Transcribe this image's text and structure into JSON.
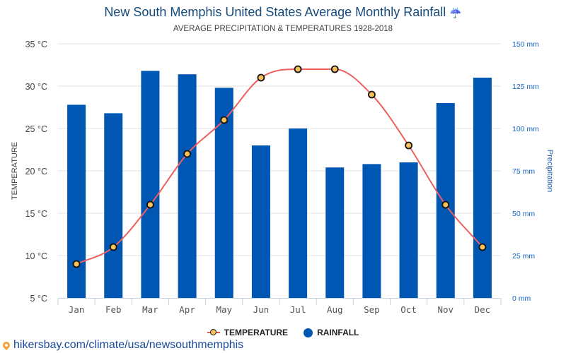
{
  "chart_data": {
    "type": "bar",
    "title": "New South Memphis United States Average Monthly Rainfall",
    "title_icon": "umbrella-rain-icon",
    "title_icon_glyph": "☔",
    "subtitle": "AVERAGE PRECIPITATION & TEMPERATURES 1928-2018",
    "categories": [
      "Jan",
      "Feb",
      "Mar",
      "Apr",
      "May",
      "Jun",
      "Jul",
      "Aug",
      "Sep",
      "Oct",
      "Nov",
      "Dec"
    ],
    "series": [
      {
        "name": "RAINFALL",
        "type": "bar",
        "axis": "right",
        "unit": "mm",
        "color": "#0057b3",
        "values": [
          114,
          109,
          134,
          132,
          124,
          90,
          100,
          77,
          79,
          80,
          115,
          130
        ]
      },
      {
        "name": "TEMPERATURE",
        "type": "line",
        "axis": "left",
        "unit": "°C",
        "color": "#ee5f5f",
        "marker_color": "#f7c25a",
        "values": [
          9,
          11,
          16,
          22,
          26,
          31,
          32,
          32,
          29,
          23,
          16,
          11
        ]
      }
    ],
    "y_left": {
      "label": "TEMPERATURE",
      "range": [
        5,
        35
      ],
      "ticks": [
        "35 °C",
        "30 °C",
        "25 °C",
        "20 °C",
        "15 °C",
        "10 °C",
        "5 °C"
      ],
      "tick_values": [
        35,
        30,
        25,
        20,
        15,
        10,
        5
      ]
    },
    "y_right": {
      "label": "Precipitation",
      "range": [
        0,
        150
      ],
      "ticks": [
        "150 mm",
        "125 mm",
        "100 mm",
        "75 mm",
        "50 mm",
        "25 mm",
        "0 mm"
      ],
      "tick_values": [
        150,
        125,
        100,
        75,
        50,
        25,
        0
      ]
    },
    "grid": true,
    "legend_position": "bottom-center"
  },
  "legend": {
    "temperature": "TEMPERATURE",
    "rainfall": "RAINFALL"
  },
  "footer": {
    "link_text": "hikersbay.com/climate/usa/newsouthmemphis"
  }
}
